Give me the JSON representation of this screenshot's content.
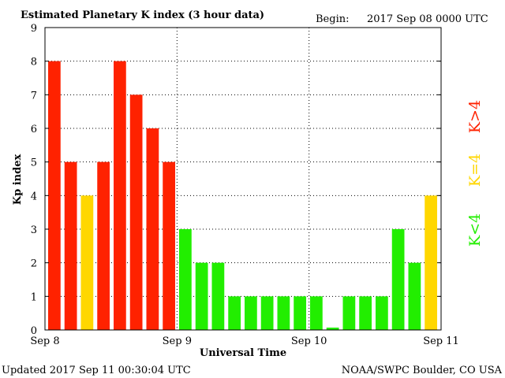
{
  "header": {
    "title": "Estimated Planetary K index (3 hour data)",
    "begin_label": "Begin:",
    "begin_value": "2017 Sep 08 0000 UTC"
  },
  "footer": {
    "updated": "Updated 2017 Sep 11 00:30:04 UTC",
    "source": "NOAA/SWPC Boulder, CO USA"
  },
  "legend": {
    "high": "K>4",
    "equal": "K=4",
    "low": "K<4"
  },
  "colors": {
    "high": "#ff2200",
    "equal": "#ffd700",
    "low": "#22ee00"
  },
  "chart_data": {
    "type": "bar",
    "title": "Estimated Planetary K index (3 hour data)",
    "xlabel": "Universal Time",
    "ylabel": "Kp index",
    "ylim": [
      0,
      9
    ],
    "yticks": [
      "0",
      "1",
      "2",
      "3",
      "4",
      "5",
      "6",
      "7",
      "8",
      "9"
    ],
    "xticks": [
      "Sep 8",
      "Sep 9",
      "Sep 10",
      "Sep 11"
    ],
    "grid": true,
    "values": [
      8,
      5,
      4,
      5,
      8,
      7,
      6,
      5,
      3,
      2,
      2,
      1,
      1,
      1,
      1,
      1,
      1,
      0.07,
      1,
      1,
      1,
      3,
      2,
      4
    ]
  }
}
